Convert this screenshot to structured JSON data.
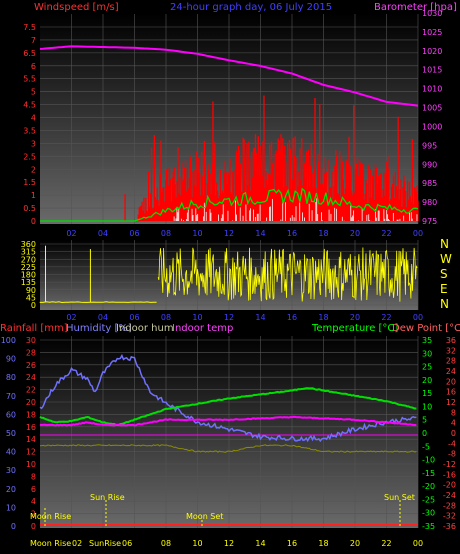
{
  "header": {
    "left_label": "Windspeed [m/s]",
    "center_label": "24-hour graph day, 06 July 2015",
    "right_label": "Barometer [hpa]"
  },
  "wind_chart": {
    "type": "bar",
    "y_left_ticks": [
      "0",
      "0.5",
      "1",
      "1.5",
      "2",
      "2.5",
      "3",
      "3.5",
      "4",
      "4.5",
      "5",
      "5.5",
      "6",
      "6.5",
      "7",
      "7.5"
    ],
    "y_right_ticks": [
      "975",
      "980",
      "985",
      "990",
      "995",
      "1000",
      "1005",
      "1010",
      "1015",
      "1020",
      "1025",
      "1030"
    ],
    "x_ticks": [
      "02",
      "04",
      "06",
      "08",
      "10",
      "12",
      "14",
      "16",
      "18",
      "20",
      "22",
      "00"
    ],
    "barometer_hours": [
      0,
      2,
      4,
      6,
      8,
      10,
      12,
      14,
      16,
      18,
      20,
      22,
      24
    ],
    "barometer_hpa": [
      1020.5,
      1021.2,
      1021.0,
      1020.8,
      1020.3,
      1019.2,
      1017.5,
      1016.0,
      1014.0,
      1011.0,
      1009.0,
      1006.5,
      1005.5
    ],
    "gust_level_hours": [
      0,
      6,
      8,
      10,
      12,
      14,
      16,
      18,
      20,
      22,
      24
    ],
    "gust_level_ms": [
      0.2,
      0.3,
      1.5,
      2.0,
      2.2,
      2.5,
      2.4,
      2.2,
      1.8,
      1.5,
      1.2
    ],
    "avg_level_hours": [
      0,
      6,
      8,
      10,
      12,
      14,
      16,
      18,
      20,
      22,
      24
    ],
    "avg_level_ms": [
      0,
      0,
      0.4,
      0.7,
      0.8,
      0.9,
      1.0,
      0.9,
      0.6,
      0.5,
      0.4
    ],
    "colors": {
      "gust": "#ff0000",
      "average": "#00e000",
      "speed": "#ffffff",
      "barometer": "#ff00ff"
    }
  },
  "dir_chart": {
    "type": "scatter",
    "y_ticks": [
      "0",
      "45",
      "90",
      "135",
      "180",
      "225",
      "270",
      "315",
      "360"
    ],
    "compass": [
      "N",
      "W",
      "S",
      "E",
      "N"
    ],
    "x_ticks": [
      "02",
      "04",
      "06",
      "08",
      "10",
      "12",
      "14",
      "16",
      "18",
      "20",
      "22",
      "00"
    ],
    "color": "#ffff00"
  },
  "lower_chart": {
    "labels": {
      "rain": "Rainfall [mm]",
      "humidity": "Humidity [%]",
      "indoor_hum": "Indoor hum",
      "indoor_temp": "Indoor temp",
      "temperature": "Temperature [°C]",
      "dew_point": "Dew Point [°C]"
    },
    "humidity_ticks": [
      "0",
      "10",
      "20",
      "30",
      "40",
      "50",
      "60",
      "70",
      "80",
      "90",
      "100"
    ],
    "rain_ticks": [
      "0",
      "2",
      "4",
      "6",
      "8",
      "10",
      "12",
      "14",
      "16",
      "18",
      "20",
      "22",
      "24",
      "26",
      "28",
      "30"
    ],
    "temp_ticks": [
      "-35",
      "-30",
      "-25",
      "-20",
      "-15",
      "-10",
      "-5",
      "0",
      "5",
      "10",
      "15",
      "20",
      "25",
      "30",
      "35"
    ],
    "dew_ticks": [
      "-36",
      "-32",
      "-28",
      "-24",
      "-20",
      "-16",
      "-12",
      "-8",
      "-4",
      "0",
      "4",
      "8",
      "12",
      "16",
      "20",
      "24",
      "28",
      "32",
      "36"
    ],
    "x_ticks": [
      "02",
      "04",
      "06",
      "08",
      "10",
      "12",
      "14",
      "16",
      "18",
      "20",
      "22",
      "00"
    ],
    "humidity": {
      "hours": [
        0,
        1,
        2,
        3,
        3.5,
        4,
        5,
        6,
        7,
        8,
        9,
        10,
        12,
        14,
        16,
        18,
        20,
        22,
        24
      ],
      "values": [
        63,
        76,
        84,
        79,
        72,
        82,
        91,
        90,
        72,
        66,
        61,
        56,
        52,
        48,
        47,
        47,
        52,
        56,
        58
      ]
    },
    "temperature": {
      "hours": [
        0,
        1,
        2,
        3,
        4,
        5,
        6,
        7,
        8,
        10,
        12,
        14,
        16,
        17,
        18,
        20,
        22,
        24
      ],
      "values": [
        6,
        4,
        4.5,
        6,
        4,
        3,
        5,
        7,
        9,
        11,
        13,
        14.5,
        16,
        17,
        16,
        14,
        12,
        9
      ]
    },
    "indoor_temp": {
      "hours": [
        0,
        2,
        3,
        4,
        6,
        8,
        10,
        12,
        14,
        16,
        18,
        20,
        22,
        24
      ],
      "values": [
        3,
        3,
        4,
        3,
        3,
        5,
        5,
        5,
        5.5,
        6,
        5.5,
        5,
        4,
        3
      ]
    },
    "indoor_hum": {
      "hours": [
        0,
        8,
        10,
        12,
        14,
        16,
        18,
        20,
        24
      ],
      "values": [
        13,
        13,
        12,
        12,
        13,
        13,
        12,
        12,
        12
      ]
    },
    "annotations": {
      "moon_rise": "Moon Rise",
      "sun_rise": "Sun Rise",
      "moon_set": "Moon Set",
      "sun_set": "Sun Set"
    },
    "x_labels_bottom": {
      "moon_rise": "Moon Rise",
      "t02": "02",
      "sun_rise": "SunRise",
      "t06": "06"
    },
    "colors": {
      "humidity": "#7070ff",
      "temperature": "#00e000",
      "indoor_temp": "#ff00ff",
      "indoor_hum": "#8b8b00",
      "rain": "#ff2020",
      "dew": "#ff4040"
    }
  }
}
